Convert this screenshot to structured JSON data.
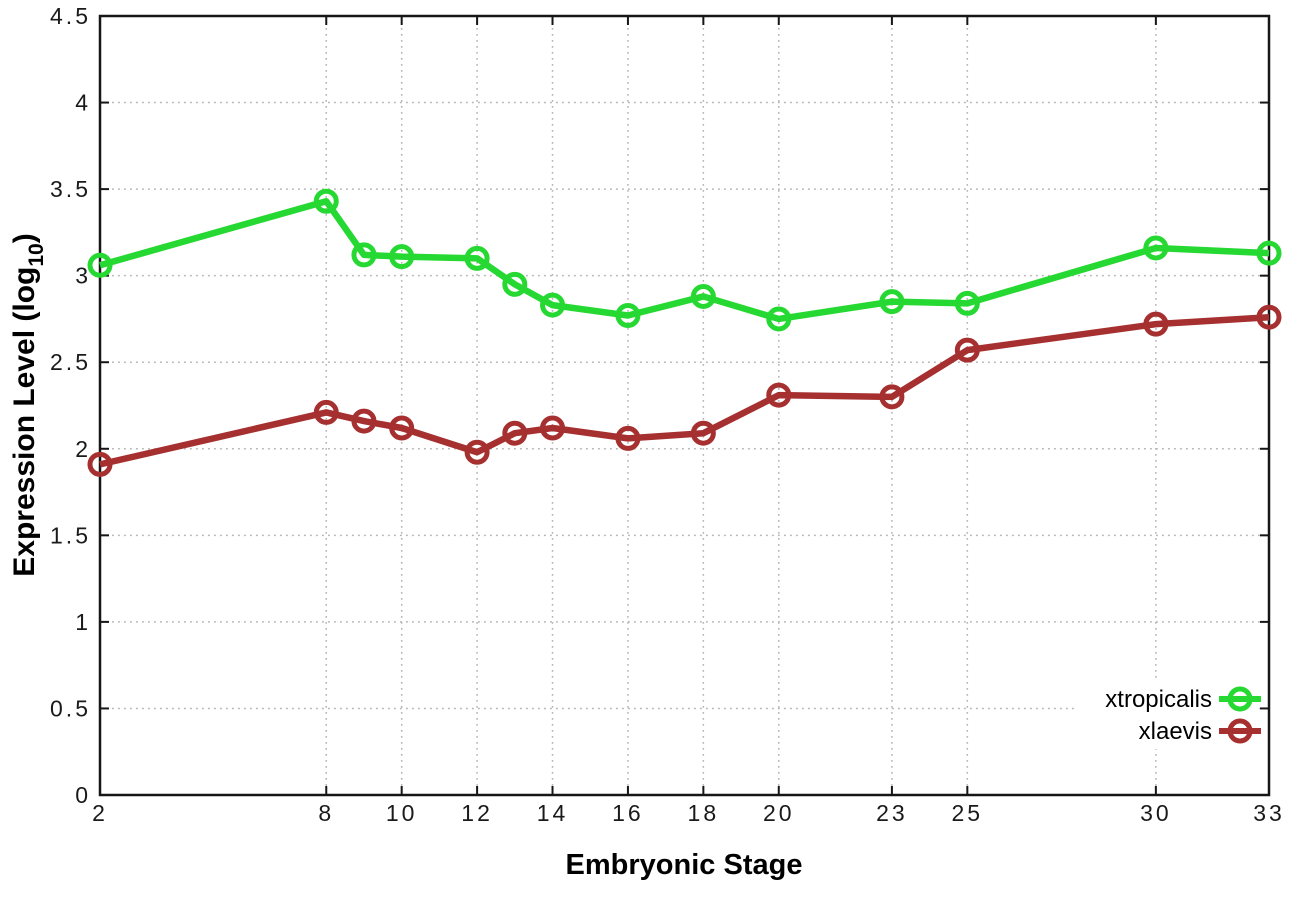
{
  "chart_data": {
    "type": "line",
    "title": "",
    "xlabel": "Embryonic Stage",
    "ylabel": "Expression Level (log10)",
    "ylabel_parts": {
      "main": "Expression Level (log",
      "sub": "10",
      "close": ")"
    },
    "x": [
      2,
      8,
      9,
      10,
      12,
      13,
      14,
      16,
      18,
      20,
      23,
      25,
      30,
      33
    ],
    "series": [
      {
        "name": "xtropicalis",
        "color": "#26d832",
        "values": [
          3.06,
          3.43,
          3.12,
          3.11,
          3.1,
          2.95,
          2.83,
          2.77,
          2.88,
          2.75,
          2.85,
          2.84,
          3.16,
          3.13
        ]
      },
      {
        "name": "xlaevis",
        "color": "#a63030",
        "values": [
          1.91,
          2.21,
          2.16,
          2.12,
          1.98,
          2.09,
          2.12,
          2.06,
          2.09,
          2.31,
          2.3,
          2.57,
          2.72,
          2.76
        ]
      }
    ],
    "xlim": [
      2,
      33
    ],
    "ylim": [
      0,
      4.5
    ],
    "xticks": [
      2,
      8,
      10,
      12,
      14,
      16,
      18,
      20,
      23,
      25,
      30,
      33
    ],
    "yticks": [
      "0",
      "0.5",
      "1",
      "1.5",
      "2",
      "2.5",
      "3",
      "3.5",
      "4",
      "4.5"
    ],
    "grid": true,
    "legend_position": "bottom-right",
    "marker": "open-circle",
    "colors": {
      "grid": "#b5b5b5",
      "border": "#161616",
      "background": "#ffffff"
    }
  }
}
